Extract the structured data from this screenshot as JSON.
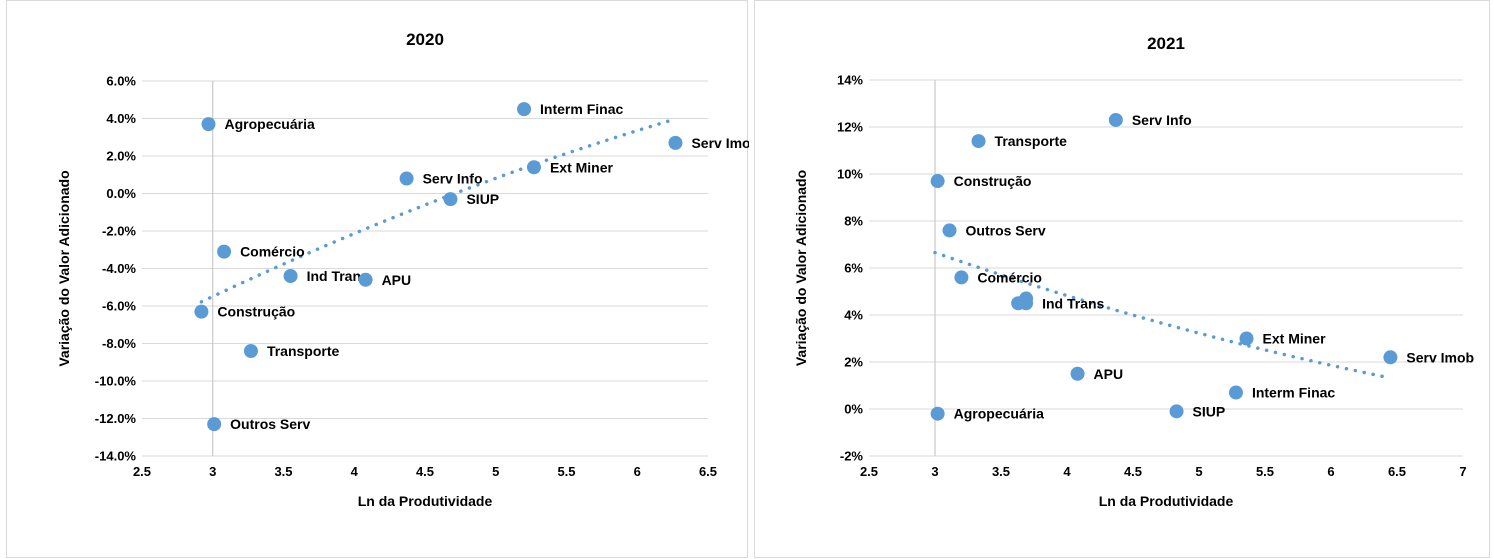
{
  "chart_data": [
    {
      "type": "scatter",
      "title": "2020",
      "xlabel": "Ln da Produtividade",
      "ylabel": "Variação do Valor Adicionado",
      "xlim": [
        2.5,
        6.5
      ],
      "ylim": [
        -14,
        6
      ],
      "x_ticks": [
        "2.5",
        "3",
        "3.5",
        "4",
        "4.5",
        "5",
        "5.5",
        "6",
        "6.5"
      ],
      "y_ticks": [
        "6.0%",
        "4.0%",
        "2.0%",
        "0.0%",
        "-2.0%",
        "-4.0%",
        "-6.0%",
        "-8.0%",
        "-10.0%",
        "-12.0%",
        "-14.0%"
      ],
      "grid": "horizontal",
      "marker_color": "#5b9bd5",
      "trendline": {
        "type": "polynomial",
        "style": "dotted",
        "x_range": [
          2.92,
          6.22
        ]
      },
      "points": [
        {
          "label": "Agropecuária",
          "x": 2.97,
          "y": 3.7
        },
        {
          "label": "Interm Finac",
          "x": 5.2,
          "y": 4.5
        },
        {
          "label": "Serv Imob",
          "x": 6.27,
          "y": 2.7
        },
        {
          "label": "Serv Info",
          "x": 4.37,
          "y": 0.8
        },
        {
          "label": "Ext Miner",
          "x": 5.27,
          "y": 1.4
        },
        {
          "label": "SIUP",
          "x": 4.68,
          "y": -0.3
        },
        {
          "label": "Comércio",
          "x": 3.08,
          "y": -3.1
        },
        {
          "label": "Ind Trans",
          "x": 3.55,
          "y": -4.4
        },
        {
          "label": "APU",
          "x": 4.08,
          "y": -4.6
        },
        {
          "label": "Construção",
          "x": 2.92,
          "y": -6.3
        },
        {
          "label": "Transporte",
          "x": 3.27,
          "y": -8.4
        },
        {
          "label": "Outros Serv",
          "x": 3.01,
          "y": -12.3
        }
      ]
    },
    {
      "type": "scatter",
      "title": "2021",
      "xlabel": "Ln da Produtividade",
      "ylabel": "Variação do Valor Adicionado",
      "xlim": [
        2.5,
        7
      ],
      "ylim": [
        -2,
        14
      ],
      "x_ticks": [
        "2.5",
        "3",
        "3.5",
        "4",
        "4.5",
        "5",
        "5.5",
        "6",
        "6.5",
        "7"
      ],
      "y_ticks": [
        "14%",
        "12%",
        "10%",
        "8%",
        "6%",
        "4%",
        "2%",
        "0%",
        "-2%"
      ],
      "grid": "horizontal",
      "marker_color": "#5b9bd5",
      "trendline": {
        "type": "polynomial",
        "style": "dotted",
        "x_range": [
          3.0,
          6.4
        ]
      },
      "points": [
        {
          "label": "Serv Info",
          "x": 4.37,
          "y": 12.3
        },
        {
          "label": "Transporte",
          "x": 3.33,
          "y": 11.4
        },
        {
          "label": "Construção",
          "x": 3.02,
          "y": 9.7
        },
        {
          "label": "Outros Serv",
          "x": 3.11,
          "y": 7.6
        },
        {
          "label": "Comércio",
          "x": 3.2,
          "y": 5.6
        },
        {
          "label": "",
          "x": 3.69,
          "y": 4.7
        },
        {
          "label": "",
          "x": 3.63,
          "y": 4.5
        },
        {
          "label": "Ind Trans",
          "x": 3.69,
          "y": 4.5
        },
        {
          "label": "Ext Miner",
          "x": 5.36,
          "y": 3.0
        },
        {
          "label": "Serv Imob",
          "x": 6.45,
          "y": 2.2
        },
        {
          "label": "APU",
          "x": 4.08,
          "y": 1.5
        },
        {
          "label": "Interm Finac",
          "x": 5.28,
          "y": 0.7
        },
        {
          "label": "Agropecuária",
          "x": 3.02,
          "y": -0.2
        },
        {
          "label": "SIUP",
          "x": 4.83,
          "y": -0.1
        }
      ]
    }
  ]
}
